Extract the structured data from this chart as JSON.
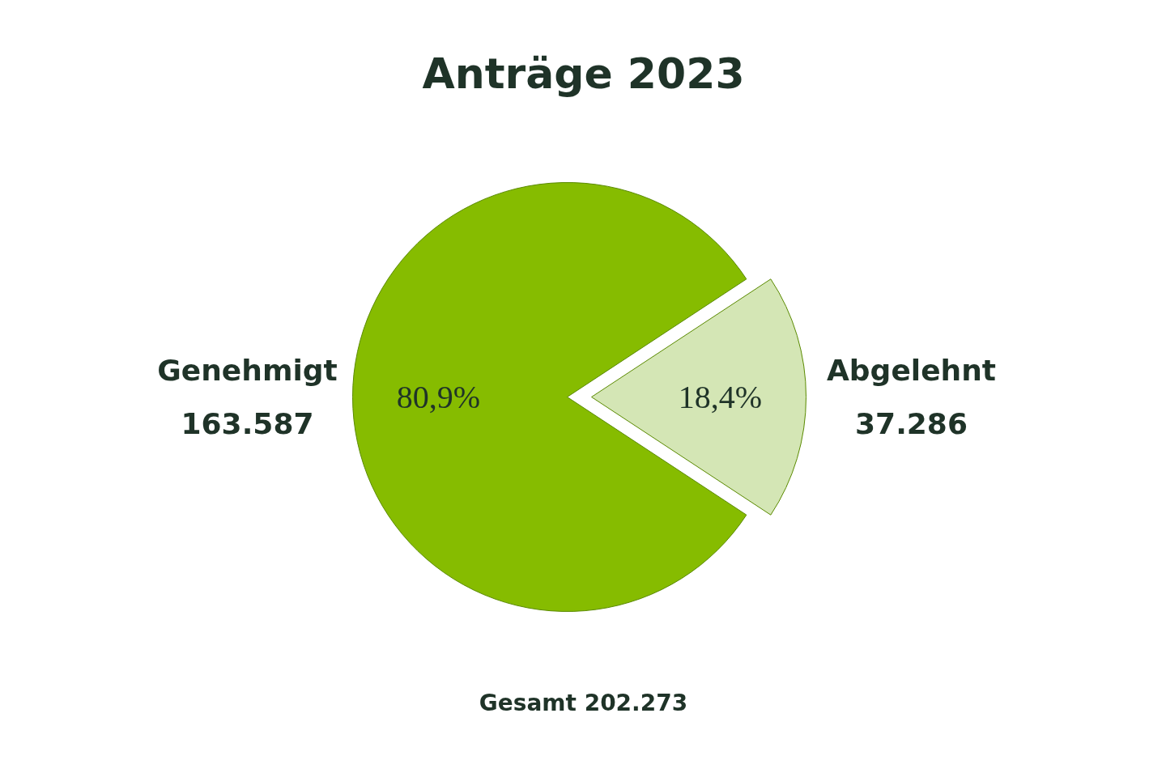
{
  "chart_data": {
    "type": "pie",
    "title": "Anträge 2023",
    "categories": [
      "Genehmigt\n163.587",
      "Abgelehnt\n37.286"
    ],
    "values": [
      80.9,
      18.4
    ],
    "colors": [
      "#86bc00",
      "#d4e6b5"
    ],
    "value_labels": [
      "80,9%",
      "18,4%"
    ],
    "annotations": [
      "Gesamt 202.273"
    ]
  }
}
